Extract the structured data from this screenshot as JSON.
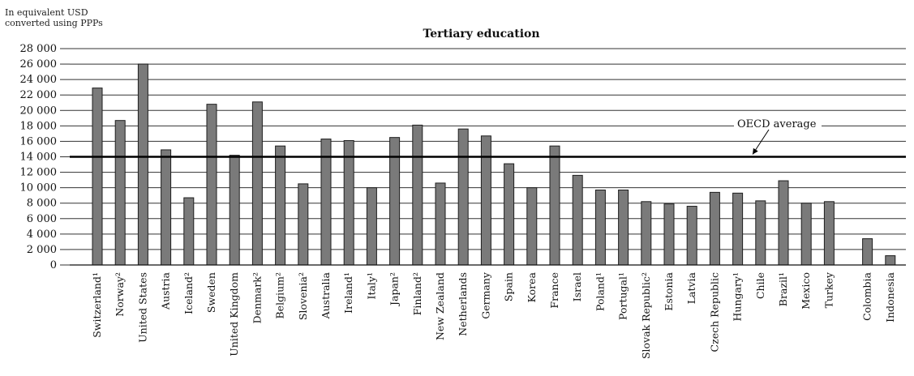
{
  "chart_data": {
    "type": "bar",
    "title": "Tertiary education",
    "ylabel_lines": [
      "In equivalent USD",
      "converted using PPPs"
    ],
    "ylim": [
      0,
      28000
    ],
    "yticks": [
      0,
      2000,
      4000,
      6000,
      8000,
      10000,
      12000,
      14000,
      16000,
      18000,
      20000,
      22000,
      24000,
      26000,
      28000
    ],
    "ytick_labels": [
      "0",
      "2 000",
      "4 000",
      "6 000",
      "8 000",
      "10 000",
      "12 000",
      "14 000",
      "16 000",
      "18 000",
      "20 000",
      "22 000",
      "24 000",
      "26 000",
      "28 000"
    ],
    "grid": "horizontal",
    "categories": [
      "Switzerland¹",
      "Norway²",
      "United States",
      "Austria",
      "Iceland²",
      "Sweden",
      "United Kingdom",
      "Denmark²",
      "Belgium²",
      "Slovenia²",
      "Australia",
      "Ireland¹",
      "Italy¹",
      "Japan²",
      "Finland²",
      "New Zealand",
      "Netherlands",
      "Germany",
      "Spain",
      "Korea",
      "France",
      "Israel",
      "Poland¹",
      "Portugal¹",
      "Slovak Republic²",
      "Estonia",
      "Latvia",
      "Czech Republic",
      "Hungary¹",
      "Chile",
      "Brazil¹",
      "Mexico",
      "Turkey",
      "Colombia",
      "Indonesia"
    ],
    "values": [
      22900,
      18700,
      26000,
      14900,
      8700,
      20800,
      14200,
      21100,
      15400,
      10500,
      16300,
      16100,
      10000,
      16500,
      18100,
      10600,
      17600,
      16700,
      13100,
      10000,
      15400,
      11600,
      9700,
      9700,
      8200,
      7900,
      7600,
      9400,
      9300,
      8300,
      10900,
      8000,
      8200,
      3400,
      1200
    ],
    "gap_before_index": 33,
    "reference_line": {
      "label": "OECD average",
      "value": 14000
    },
    "colors": {
      "bar_fill": "#7a7a7a",
      "bar_stroke": "#1e1e1e",
      "axis": "#111111",
      "grid": "#333333"
    }
  }
}
